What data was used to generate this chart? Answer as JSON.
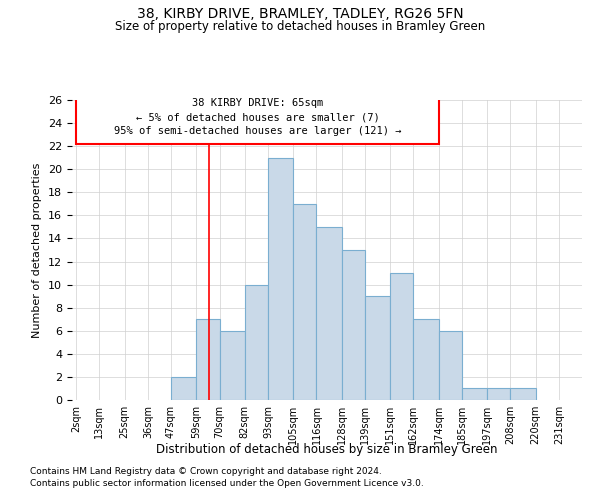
{
  "title1": "38, KIRBY DRIVE, BRAMLEY, TADLEY, RG26 5FN",
  "title2": "Size of property relative to detached houses in Bramley Green",
  "xlabel": "Distribution of detached houses by size in Bramley Green",
  "ylabel": "Number of detached properties",
  "footnote1": "Contains HM Land Registry data © Crown copyright and database right 2024.",
  "footnote2": "Contains public sector information licensed under the Open Government Licence v3.0.",
  "annotation_line1": "38 KIRBY DRIVE: 65sqm",
  "annotation_line2": "← 5% of detached houses are smaller (7)",
  "annotation_line3": "95% of semi-detached houses are larger (121) →",
  "bar_left_edges": [
    2,
    13,
    25,
    36,
    47,
    59,
    70,
    82,
    93,
    105,
    116,
    128,
    139,
    151,
    162,
    174,
    185,
    197,
    208,
    220
  ],
  "bar_widths": [
    11,
    12,
    11,
    11,
    12,
    11,
    12,
    11,
    12,
    11,
    12,
    11,
    12,
    11,
    12,
    11,
    12,
    11,
    12,
    11
  ],
  "bar_heights": [
    0,
    0,
    0,
    0,
    2,
    7,
    6,
    10,
    21,
    17,
    15,
    13,
    9,
    11,
    7,
    6,
    1,
    1,
    1,
    0
  ],
  "tick_labels": [
    "2sqm",
    "13sqm",
    "25sqm",
    "36sqm",
    "47sqm",
    "59sqm",
    "70sqm",
    "82sqm",
    "93sqm",
    "105sqm",
    "116sqm",
    "128sqm",
    "139sqm",
    "151sqm",
    "162sqm",
    "174sqm",
    "185sqm",
    "197sqm",
    "208sqm",
    "220sqm",
    "231sqm"
  ],
  "tick_positions": [
    2,
    13,
    25,
    36,
    47,
    59,
    70,
    82,
    93,
    105,
    116,
    128,
    139,
    151,
    162,
    174,
    185,
    197,
    208,
    220,
    231
  ],
  "bar_facecolor": "#c9d9e8",
  "bar_edgecolor": "#7aaed0",
  "red_line_x": 65,
  "ylim": [
    0,
    26
  ],
  "xlim": [
    0,
    242
  ],
  "yticks": [
    0,
    2,
    4,
    6,
    8,
    10,
    12,
    14,
    16,
    18,
    20,
    22,
    24,
    26
  ],
  "grid_color": "#d0d0d0",
  "background_color": "#ffffff"
}
